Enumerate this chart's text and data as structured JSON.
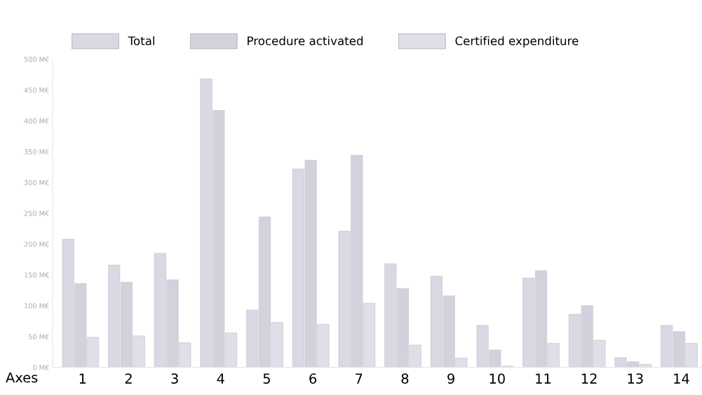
{
  "chart_data": {
    "type": "bar",
    "xlabel": "Axes",
    "categories": [
      "1",
      "2",
      "3",
      "4",
      "5",
      "6",
      "7",
      "8",
      "9",
      "10",
      "11",
      "12",
      "13",
      "14"
    ],
    "series": [
      {
        "name": "Total",
        "color": "#d9d9e3",
        "values": [
          208,
          166,
          185,
          468,
          93,
          322,
          221,
          168,
          148,
          68,
          145,
          86,
          16,
          68
        ]
      },
      {
        "name": "Procedure activated",
        "color": "#d2d2dc",
        "values": [
          136,
          138,
          142,
          417,
          244,
          336,
          344,
          128,
          116,
          28,
          157,
          100,
          9,
          58
        ]
      },
      {
        "name": "Certified expenditure",
        "color": "#dfdfe9",
        "values": [
          49,
          51,
          40,
          56,
          73,
          70,
          104,
          36,
          15,
          2,
          39,
          44,
          5,
          39
        ]
      }
    ],
    "ylim": [
      0,
      500
    ],
    "yticks": [
      {
        "value": 0,
        "label": "0 M€"
      },
      {
        "value": 50,
        "label": "50 M€"
      },
      {
        "value": 100,
        "label": "100 M€"
      },
      {
        "value": 150,
        "label": "150 M€"
      },
      {
        "value": 200,
        "label": "200 M€"
      },
      {
        "value": 250,
        "label": "250 M€"
      },
      {
        "value": 300,
        "label": "300 M€"
      },
      {
        "value": 350,
        "label": "350 M€"
      },
      {
        "value": 400,
        "label": "400 M€"
      },
      {
        "value": 450,
        "label": "450 M€"
      },
      {
        "value": 500,
        "label": "500 M€"
      }
    ],
    "legend": "top",
    "grid": false
  }
}
